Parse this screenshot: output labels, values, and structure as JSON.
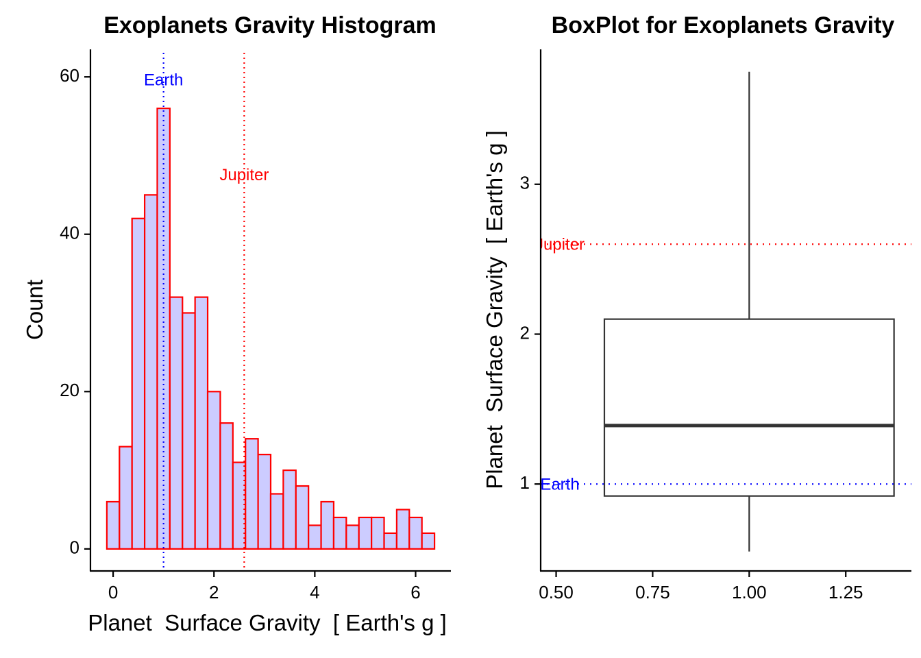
{
  "chart_data": [
    {
      "type": "bar",
      "subtype": "histogram",
      "title": "Exoplanets Gravity Histogram",
      "xlabel": "Planet  Surface Gravity  [ Earth's g ]",
      "ylabel": "Count",
      "bin_width": 0.25,
      "bin_start": -0.125,
      "values": [
        6,
        13,
        42,
        45,
        56,
        32,
        30,
        32,
        20,
        16,
        11,
        14,
        12,
        7,
        10,
        8,
        3,
        6,
        4,
        3,
        4,
        4,
        2,
        5,
        4,
        2
      ],
      "xlim": [
        -0.45,
        6.7
      ],
      "ylim": [
        -2.8,
        63.5
      ],
      "xticks": [
        "0",
        "2",
        "4",
        "6"
      ],
      "yticks": [
        "0",
        "20",
        "40",
        "60"
      ],
      "fill_color": "#ccccff",
      "edge_color": "#ff0000",
      "grid": false,
      "reference_lines": [
        {
          "label": "Earth",
          "value": 1.0,
          "color": "#0000ff"
        },
        {
          "label": "Jupiter",
          "value": 2.6,
          "color": "#ff0000"
        }
      ]
    },
    {
      "type": "box",
      "title": "BoxPlot for Exoplanets Gravity",
      "xlabel": "",
      "ylabel": "Planet  Surface Gravity  [ Earth's g ]",
      "x": 1.0,
      "box_width": 0.75,
      "whisker_low": 0.55,
      "q1": 0.92,
      "median": 1.39,
      "q3": 2.1,
      "whisker_high": 3.75,
      "xlim": [
        0.46,
        1.42
      ],
      "ylim": [
        0.42,
        3.9
      ],
      "xticks": [
        "0.50",
        "0.75",
        "1.00",
        "1.25"
      ],
      "yticks": [
        "1",
        "2",
        "3"
      ],
      "grid": false,
      "reference_lines": [
        {
          "label": "Earth",
          "value": 1.0,
          "color": "#0000ff"
        },
        {
          "label": "Jupiter",
          "value": 2.6,
          "color": "#ff0000"
        }
      ]
    }
  ]
}
